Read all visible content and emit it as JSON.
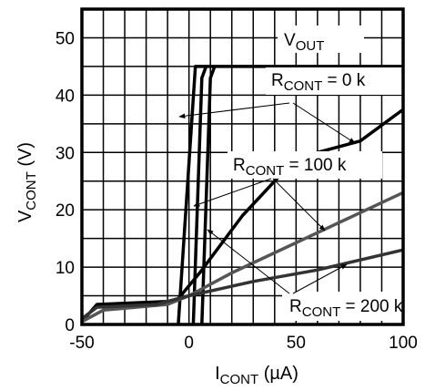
{
  "chart_data": {
    "type": "line",
    "x_axis": {
      "label_main": "I",
      "label_sub": "CONT",
      "label_unit": " (µA)",
      "range": [
        -50,
        100
      ],
      "ticks": [
        -50,
        0,
        50,
        100
      ],
      "tick_labels": [
        "-50",
        "0",
        "50",
        "100"
      ]
    },
    "y_axis": {
      "label_main": "V",
      "label_sub": "CONT",
      "label_unit": " (V)",
      "range": [
        0,
        55
      ],
      "ticks": [
        0,
        10,
        20,
        30,
        40,
        50
      ],
      "tick_labels": [
        "0",
        "10",
        "20",
        "30",
        "40",
        "50"
      ]
    },
    "grid": true,
    "series": [
      {
        "name": "VOUT, RCONT = 0 k",
        "color": "#000000",
        "width": 3.5,
        "points": [
          [
            -5,
            0
          ],
          [
            3,
            45
          ],
          [
            100,
            45
          ]
        ]
      },
      {
        "name": "VOUT, RCONT = 100 k",
        "color": "#000000",
        "width": 3.5,
        "points": [
          [
            2,
            0
          ],
          [
            6,
            43
          ],
          [
            8,
            45
          ]
        ]
      },
      {
        "name": "VOUT, RCONT = 200 k",
        "color": "#000000",
        "width": 3.5,
        "points": [
          [
            6,
            0
          ],
          [
            10,
            43
          ],
          [
            12,
            45
          ]
        ]
      },
      {
        "name": "VCONT, RCONT = 0 k",
        "color": "#000000",
        "width": 3.5,
        "points": [
          [
            -50,
            0.5
          ],
          [
            -43,
            3.5
          ],
          [
            -10,
            4
          ],
          [
            -5,
            4.5
          ],
          [
            5,
            9
          ],
          [
            25,
            19
          ],
          [
            50,
            29
          ],
          [
            80,
            32
          ],
          [
            100,
            37.5
          ]
        ]
      },
      {
        "name": "VCONT, RCONT = 100 k",
        "color": "#555555",
        "width": 3.5,
        "points": [
          [
            -50,
            0.5
          ],
          [
            -40,
            2.5
          ],
          [
            -10,
            3.5
          ],
          [
            0,
            5
          ],
          [
            20,
            9
          ],
          [
            60,
            16
          ],
          [
            100,
            23
          ]
        ]
      },
      {
        "name": "VCONT, RCONT = 200 k",
        "color": "#333333",
        "width": 3.5,
        "points": [
          [
            -50,
            1
          ],
          [
            -43,
            3
          ],
          [
            -15,
            3.5
          ],
          [
            0,
            5
          ],
          [
            30,
            7.5
          ],
          [
            60,
            9.5
          ],
          [
            100,
            13
          ]
        ]
      }
    ],
    "annotations": [
      {
        "main": "V",
        "sub": "OUT",
        "suffix": ""
      },
      {
        "main": "R",
        "sub": "CONT",
        "suffix": " = 0  k"
      },
      {
        "main": "R",
        "sub": "CONT",
        "suffix": " = 100 k"
      },
      {
        "main": "R",
        "sub": "CONT",
        "suffix": " = 200  k"
      }
    ]
  }
}
